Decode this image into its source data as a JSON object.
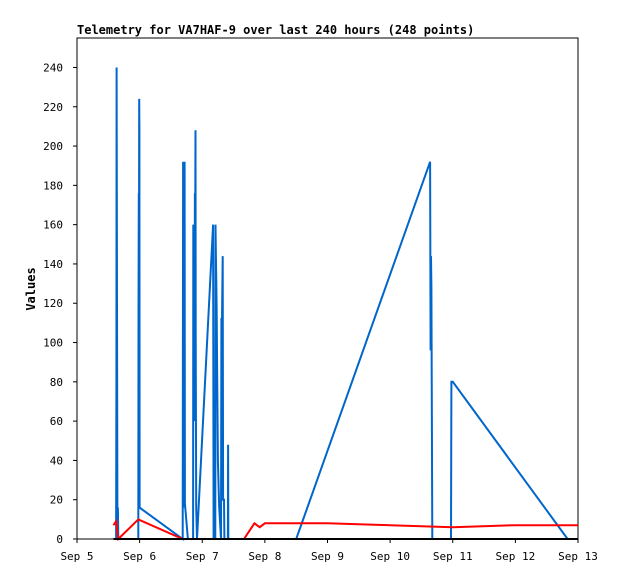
{
  "chart_data": {
    "type": "line",
    "title": "Telemetry for VA7HAF-9 over last 240 hours (248 points)",
    "xlabel": "",
    "ylabel": "Values",
    "x_tick_labels": [
      "Sep 5",
      "Sep 6",
      "Sep 7",
      "Sep 8",
      "Sep 9",
      "Sep 10",
      "Sep 11",
      "Sep 12",
      "Sep 13"
    ],
    "y_tick_labels": [
      "0",
      "20",
      "40",
      "60",
      "80",
      "100",
      "120",
      "140",
      "160",
      "180",
      "200",
      "220",
      "240"
    ],
    "xlim": [
      "Sep 5 00:00",
      "Sep 13 00:00"
    ],
    "ylim": [
      0,
      255
    ],
    "grid": false,
    "legend": "none",
    "series": [
      {
        "color": "#0066cc",
        "points": [
          [
            "Sep 5 15:00",
            0
          ],
          [
            "Sep 5 15:05",
            80
          ],
          [
            "Sep 5 15:10",
            240
          ],
          [
            "Sep 5 15:20",
            120
          ],
          [
            "Sep 5 15:30",
            10
          ],
          [
            "Sep 5 15:40",
            16
          ],
          [
            "Sep 5 15:50",
            0
          ],
          [
            "Sep 5 16:10",
            0
          ],
          [
            "Sep 5 23:30",
            0
          ],
          [
            "Sep 5 23:35",
            112
          ],
          [
            "Sep 5 23:40",
            176
          ],
          [
            "Sep 5 23:45",
            144
          ],
          [
            "Sep 5 23:50",
            224
          ],
          [
            "Sep 5 23:55",
            208
          ],
          [
            "Sep 6 00:00",
            16
          ],
          [
            "Sep 6 16:30",
            0
          ],
          [
            "Sep 6 16:35",
            96
          ],
          [
            "Sep 6 16:40",
            192
          ],
          [
            "Sep 6 16:45",
            80
          ],
          [
            "Sep 6 16:50",
            40
          ],
          [
            "Sep 6 17:00",
            128
          ],
          [
            "Sep 6 17:05",
            120
          ],
          [
            "Sep 6 17:10",
            16
          ],
          [
            "Sep 6 17:15",
            192
          ],
          [
            "Sep 6 17:20",
            18
          ],
          [
            "Sep 6 18:30",
            0
          ],
          [
            "Sep 6 20:30",
            0
          ],
          [
            "Sep 6 20:35",
            160
          ],
          [
            "Sep 6 20:45",
            80
          ],
          [
            "Sep 6 21:00",
            60
          ],
          [
            "Sep 6 21:10",
            176
          ],
          [
            "Sep 6 21:15",
            160
          ],
          [
            "Sep 6 21:20",
            176
          ],
          [
            "Sep 6 21:25",
            208
          ],
          [
            "Sep 6 21:30",
            104
          ],
          [
            "Sep 6 21:40",
            16
          ],
          [
            "Sep 6 22:00",
            0
          ],
          [
            "Sep 7 04:10",
            160
          ],
          [
            "Sep 7 04:20",
            0
          ],
          [
            "Sep 7 05:00",
            0
          ],
          [
            "Sep 7 05:05",
            160
          ],
          [
            "Sep 7 05:15",
            144
          ],
          [
            "Sep 7 05:30",
            120
          ],
          [
            "Sep 7 06:00",
            40
          ],
          [
            "Sep 7 06:30",
            16
          ],
          [
            "Sep 7 07:10",
            0
          ],
          [
            "Sep 7 07:20",
            112
          ],
          [
            "Sep 7 07:35",
            112
          ],
          [
            "Sep 7 07:50",
            144
          ],
          [
            "Sep 7 08:00",
            20
          ],
          [
            "Sep 7 08:20",
            20
          ],
          [
            "Sep 7 08:30",
            0
          ],
          [
            "Sep 7 09:50",
            0
          ],
          [
            "Sep 7 09:55",
            48
          ],
          [
            "Sep 7 10:00",
            0
          ],
          [
            "Sep 8 12:00",
            0
          ],
          [
            "Sep 10 15:20",
            192
          ],
          [
            "Sep 10 15:30",
            96
          ],
          [
            "Sep 10 15:40",
            144
          ],
          [
            "Sep 10 15:50",
            128
          ],
          [
            "Sep 10 16:10",
            0
          ],
          [
            "Sep 10 23:20",
            0
          ],
          [
            "Sep 10 23:30",
            80
          ],
          [
            "Sep 11 00:00",
            80
          ],
          [
            "Sep 12 20:00",
            0
          ]
        ]
      },
      {
        "color": "#ff0000",
        "points": [
          [
            "Sep 5 14:00",
            7
          ],
          [
            "Sep 5 15:00",
            9
          ],
          [
            "Sep 5 15:50",
            0
          ],
          [
            "Sep 5 23:30",
            10
          ],
          [
            "Sep 6 16:30",
            0
          ],
          [
            "Sep 7 16:00",
            0
          ],
          [
            "Sep 7 20:00",
            8
          ],
          [
            "Sep 7 22:00",
            6
          ],
          [
            "Sep 8 00:00",
            8
          ],
          [
            "Sep 9 00:00",
            8
          ],
          [
            "Sep 10 00:00",
            7
          ],
          [
            "Sep 11 00:00",
            6
          ],
          [
            "Sep 12 00:00",
            7
          ],
          [
            "Sep 13 00:00",
            7
          ]
        ]
      },
      {
        "color": "#000000",
        "points": [
          [
            "Sep 5 14:00",
            0
          ],
          [
            "Sep 13 00:00",
            0
          ]
        ]
      }
    ]
  }
}
